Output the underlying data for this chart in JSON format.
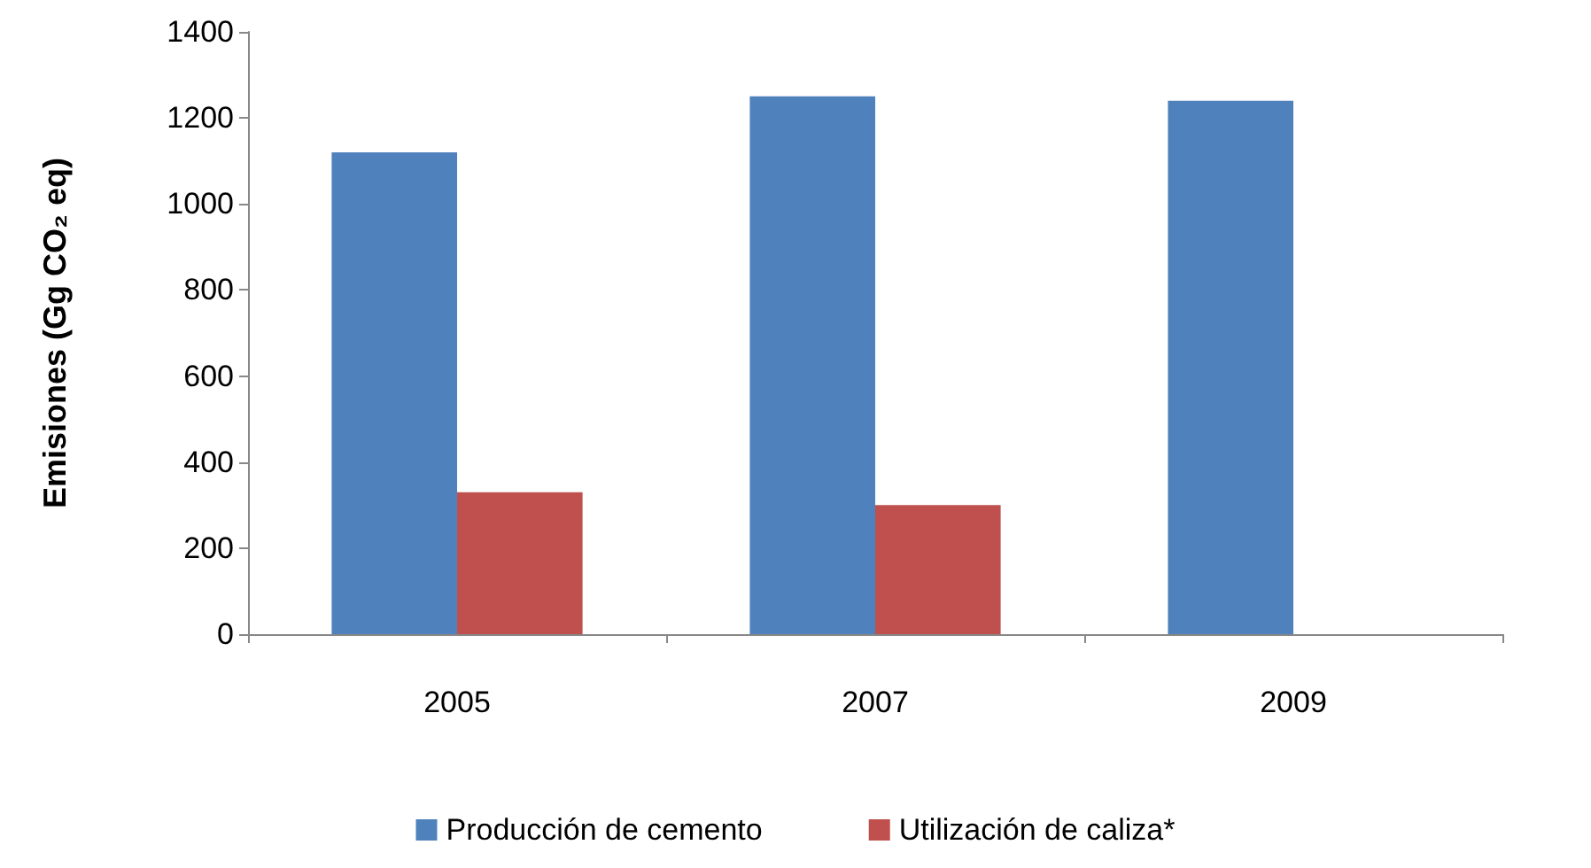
{
  "chart_data": {
    "type": "bar",
    "ylabel": "Emisiones (Gg CO₂ eq)",
    "categories": [
      "2005",
      "2007",
      "2009"
    ],
    "series": [
      {
        "name": "Producción de cemento",
        "color": "#4f81bd",
        "values": [
          1120,
          1250,
          1240
        ]
      },
      {
        "name": "Utilización de caliza*",
        "color": "#c0504d",
        "values": [
          330,
          300,
          0
        ]
      }
    ],
    "ylim": [
      0,
      1400
    ],
    "yticks": [
      0,
      200,
      400,
      600,
      800,
      1000,
      1200,
      1400
    ],
    "grid": false,
    "legend": "bottom"
  }
}
